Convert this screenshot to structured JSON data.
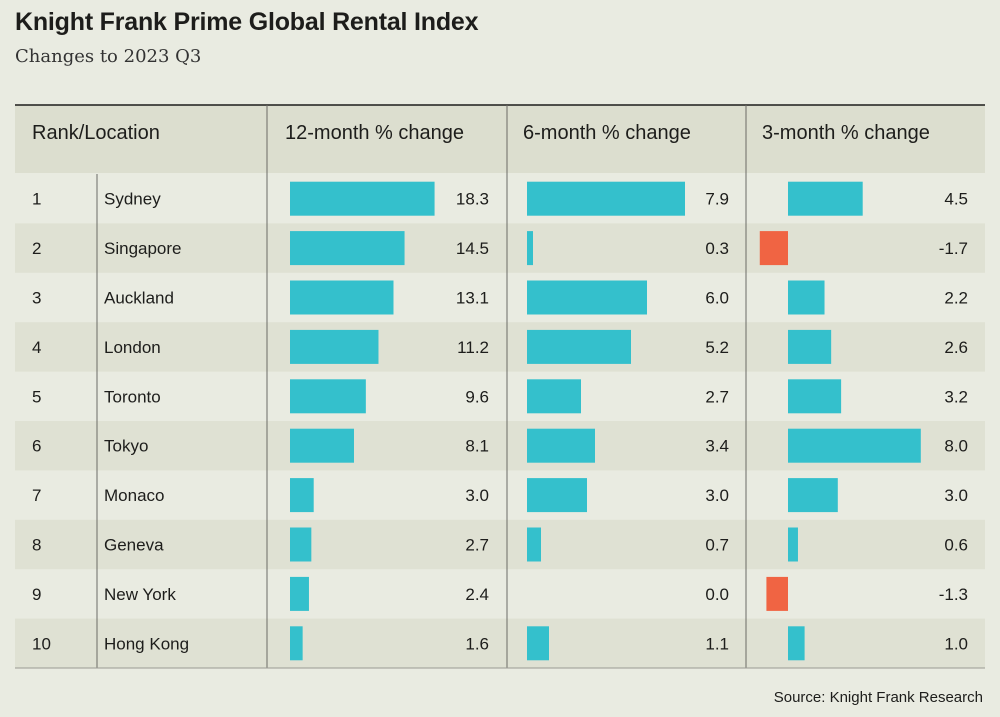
{
  "title": "Knight Frank Prime Global Rental Index",
  "subtitle": "Changes to 2023 Q3",
  "source": "Source: Knight Frank Research",
  "colors": {
    "background": "#e9ebe1",
    "header_band": "#dcdecf",
    "stripe": "#dfe1d3",
    "positive": "#34c0cc",
    "negative": "#f06443",
    "divider": "#6b6b66"
  },
  "chart_data": {
    "type": "bar",
    "columns": [
      "Rank/Location",
      "12-month % change",
      "6-month % change",
      "3-month % change"
    ],
    "categories": [
      "Sydney",
      "Singapore",
      "Auckland",
      "London",
      "Toronto",
      "Tokyo",
      "Monaco",
      "Geneva",
      "New York",
      "Hong Kong"
    ],
    "ranks": [
      "1",
      "2",
      "3",
      "4",
      "5",
      "6",
      "7",
      "8",
      "9",
      "10"
    ],
    "series": [
      {
        "name": "12-month % change",
        "values": [
          18.3,
          14.5,
          13.1,
          11.2,
          9.6,
          8.1,
          3.0,
          2.7,
          2.4,
          1.6
        ]
      },
      {
        "name": "6-month % change",
        "values": [
          7.9,
          0.3,
          6.0,
          5.2,
          2.7,
          3.4,
          3.0,
          0.7,
          0.0,
          1.1
        ]
      },
      {
        "name": "3-month % change",
        "values": [
          4.5,
          -1.7,
          2.2,
          2.6,
          3.2,
          8.0,
          3.0,
          0.6,
          -1.3,
          1.0
        ]
      }
    ]
  }
}
